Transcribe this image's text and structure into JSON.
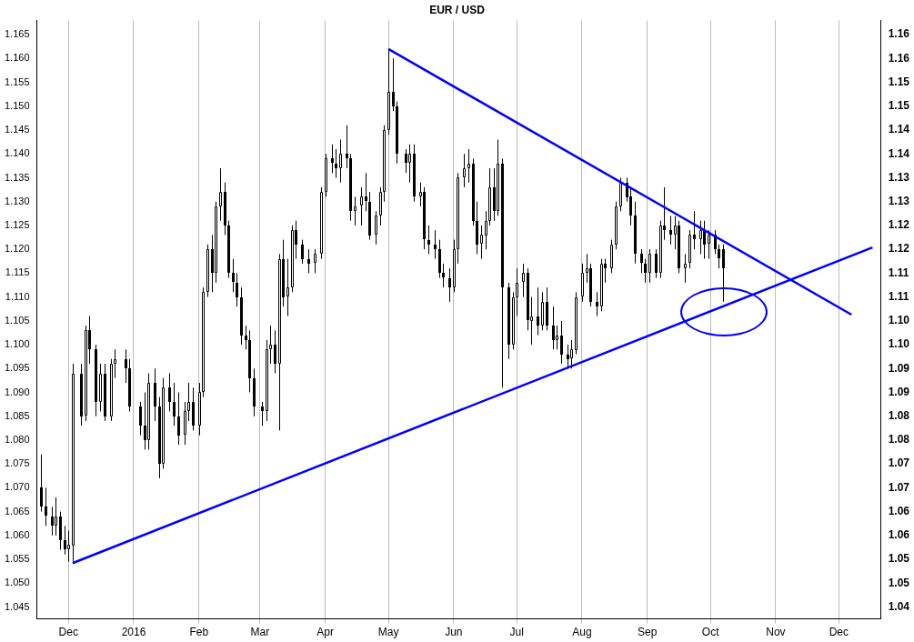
{
  "chart_data": {
    "type": "candlestick",
    "title": "EUR / USD",
    "x": [
      "2015-11-18",
      "2015-11-20",
      "2015-11-23",
      "2015-11-25",
      "2015-11-27",
      "2015-11-29",
      "2015-12-01",
      "2015-12-03",
      "2015-12-07",
      "2015-12-09",
      "2015-12-11",
      "2015-12-14",
      "2015-12-16",
      "2015-12-18",
      "2015-12-21",
      "2015-12-23",
      "2015-12-28",
      "2015-12-30",
      "2016-01-04",
      "2016-01-06",
      "2016-01-08",
      "2016-01-11",
      "2016-01-13",
      "2016-01-15",
      "2016-01-18",
      "2016-01-20",
      "2016-01-22",
      "2016-01-25",
      "2016-01-27",
      "2016-01-29",
      "2016-02-01",
      "2016-02-03",
      "2016-02-05",
      "2016-02-07",
      "2016-02-09",
      "2016-02-11",
      "2016-02-13",
      "2016-02-15",
      "2016-02-17",
      "2016-02-19",
      "2016-02-21",
      "2016-02-23",
      "2016-02-25",
      "2016-02-27",
      "2016-03-02",
      "2016-03-04",
      "2016-03-06",
      "2016-03-08",
      "2016-03-10",
      "2016-03-12",
      "2016-03-14",
      "2016-03-16",
      "2016-03-18",
      "2016-03-21",
      "2016-03-24",
      "2016-03-27",
      "2016-03-30",
      "2016-04-01",
      "2016-04-04",
      "2016-04-06",
      "2016-04-08",
      "2016-04-11",
      "2016-04-13",
      "2016-04-15",
      "2016-04-18",
      "2016-04-20",
      "2016-04-22",
      "2016-04-25",
      "2016-04-27",
      "2016-04-29",
      "2016-05-01",
      "2016-05-03",
      "2016-05-05",
      "2016-05-09",
      "2016-05-11",
      "2016-05-13",
      "2016-05-16",
      "2016-05-18",
      "2016-05-20",
      "2016-05-23",
      "2016-05-25",
      "2016-05-27",
      "2016-05-30",
      "2016-06-01",
      "2016-06-03",
      "2016-06-06",
      "2016-06-08",
      "2016-06-10",
      "2016-06-12",
      "2016-06-14",
      "2016-06-16",
      "2016-06-18",
      "2016-06-20",
      "2016-06-22",
      "2016-06-24",
      "2016-06-27",
      "2016-06-29",
      "2016-07-01",
      "2016-07-04",
      "2016-07-06",
      "2016-07-08",
      "2016-07-11",
      "2016-07-13",
      "2016-07-15",
      "2016-07-18",
      "2016-07-20",
      "2016-07-22",
      "2016-07-25",
      "2016-07-27",
      "2016-07-29",
      "2016-08-01",
      "2016-08-03",
      "2016-08-05",
      "2016-08-08",
      "2016-08-10",
      "2016-08-12",
      "2016-08-15",
      "2016-08-17",
      "2016-08-19",
      "2016-08-22",
      "2016-08-24",
      "2016-08-26",
      "2016-08-29",
      "2016-08-31",
      "2016-09-02",
      "2016-09-05",
      "2016-09-07",
      "2016-09-09",
      "2016-09-12",
      "2016-09-14",
      "2016-09-16",
      "2016-09-19",
      "2016-09-21",
      "2016-09-23",
      "2016-09-26",
      "2016-09-28",
      "2016-09-30",
      "2016-10-03",
      "2016-10-05",
      "2016-10-07"
    ],
    "ohlc": [
      [
        1.07,
        1.077,
        1.065,
        1.066
      ],
      [
        1.066,
        1.07,
        1.062,
        1.064
      ],
      [
        1.064,
        1.066,
        1.06,
        1.062
      ],
      [
        1.062,
        1.068,
        1.06,
        1.064
      ],
      [
        1.064,
        1.065,
        1.057,
        1.059
      ],
      [
        1.059,
        1.062,
        1.056,
        1.057
      ],
      [
        1.057,
        1.061,
        1.0545,
        1.058
      ],
      [
        1.058,
        1.096,
        1.0545,
        1.094
      ],
      [
        1.094,
        1.096,
        1.083,
        1.085
      ],
      [
        1.085,
        1.104,
        1.084,
        1.103
      ],
      [
        1.103,
        1.106,
        1.096,
        1.099
      ],
      [
        1.099,
        1.1,
        1.085,
        1.088
      ],
      [
        1.088,
        1.096,
        1.086,
        1.094
      ],
      [
        1.094,
        1.096,
        1.084,
        1.085
      ],
      [
        1.085,
        1.097,
        1.084,
        1.096
      ],
      [
        1.096,
        1.099,
        1.093,
        1.097
      ],
      [
        1.097,
        1.099,
        1.092,
        1.095
      ],
      [
        1.095,
        1.097,
        1.086,
        1.087
      ],
      [
        1.087,
        1.088,
        1.081,
        1.083
      ],
      [
        1.083,
        1.09,
        1.078,
        1.08
      ],
      [
        1.08,
        1.094,
        1.078,
        1.092
      ],
      [
        1.092,
        1.095,
        1.084,
        1.087
      ],
      [
        1.087,
        1.089,
        1.072,
        1.075
      ],
      [
        1.075,
        1.093,
        1.074,
        1.091
      ],
      [
        1.091,
        1.094,
        1.086,
        1.088
      ],
      [
        1.088,
        1.092,
        1.083,
        1.085
      ],
      [
        1.085,
        1.09,
        1.079,
        1.081
      ],
      [
        1.081,
        1.088,
        1.079,
        1.086
      ],
      [
        1.086,
        1.092,
        1.084,
        1.088
      ],
      [
        1.088,
        1.091,
        1.082,
        1.083
      ],
      [
        1.083,
        1.092,
        1.081,
        1.09
      ],
      [
        1.09,
        1.112,
        1.089,
        1.111
      ],
      [
        1.111,
        1.121,
        1.11,
        1.12
      ],
      [
        1.12,
        1.123,
        1.111,
        1.115
      ],
      [
        1.115,
        1.13,
        1.113,
        1.129
      ],
      [
        1.129,
        1.137,
        1.126,
        1.132
      ],
      [
        1.132,
        1.134,
        1.123,
        1.125
      ],
      [
        1.125,
        1.126,
        1.114,
        1.115
      ],
      [
        1.115,
        1.118,
        1.111,
        1.113
      ],
      [
        1.113,
        1.115,
        1.108,
        1.11
      ],
      [
        1.11,
        1.112,
        1.1,
        1.102
      ],
      [
        1.102,
        1.104,
        1.099,
        1.101
      ],
      [
        1.101,
        1.103,
        1.09,
        1.093
      ],
      [
        1.093,
        1.095,
        1.085,
        1.087
      ],
      [
        1.087,
        1.088,
        1.083,
        1.086
      ],
      [
        1.086,
        1.101,
        1.084,
        1.099
      ],
      [
        1.099,
        1.104,
        1.096,
        1.1
      ],
      [
        1.1,
        1.103,
        1.094,
        1.096
      ],
      [
        1.096,
        1.119,
        1.082,
        1.118
      ],
      [
        1.118,
        1.122,
        1.108,
        1.11
      ],
      [
        1.11,
        1.118,
        1.106,
        1.112
      ],
      [
        1.112,
        1.125,
        1.111,
        1.124
      ],
      [
        1.124,
        1.126,
        1.118,
        1.121
      ],
      [
        1.121,
        1.122,
        1.117,
        1.118
      ],
      [
        1.118,
        1.12,
        1.115,
        1.117
      ],
      [
        1.117,
        1.12,
        1.115,
        1.119
      ],
      [
        1.119,
        1.133,
        1.118,
        1.132
      ],
      [
        1.132,
        1.14,
        1.131,
        1.139
      ],
      [
        1.139,
        1.142,
        1.136,
        1.138
      ],
      [
        1.138,
        1.141,
        1.135,
        1.137
      ],
      [
        1.137,
        1.143,
        1.134,
        1.14
      ],
      [
        1.14,
        1.146,
        1.137,
        1.139
      ],
      [
        1.139,
        1.14,
        1.126,
        1.128
      ],
      [
        1.128,
        1.131,
        1.125,
        1.129
      ],
      [
        1.129,
        1.133,
        1.125,
        1.131
      ],
      [
        1.131,
        1.136,
        1.128,
        1.13
      ],
      [
        1.13,
        1.132,
        1.122,
        1.123
      ],
      [
        1.123,
        1.128,
        1.121,
        1.127
      ],
      [
        1.127,
        1.133,
        1.125,
        1.132
      ],
      [
        1.132,
        1.146,
        1.13,
        1.145
      ],
      [
        1.145,
        1.162,
        1.144,
        1.153
      ],
      [
        1.153,
        1.16,
        1.149,
        1.15
      ],
      [
        1.15,
        1.151,
        1.138,
        1.14
      ],
      [
        1.14,
        1.141,
        1.136,
        1.138
      ],
      [
        1.138,
        1.142,
        1.134,
        1.14
      ],
      [
        1.14,
        1.142,
        1.13,
        1.131
      ],
      [
        1.131,
        1.134,
        1.129,
        1.132
      ],
      [
        1.132,
        1.133,
        1.12,
        1.122
      ],
      [
        1.122,
        1.125,
        1.119,
        1.121
      ],
      [
        1.121,
        1.124,
        1.118,
        1.12
      ],
      [
        1.12,
        1.122,
        1.114,
        1.115
      ],
      [
        1.115,
        1.117,
        1.112,
        1.114
      ],
      [
        1.114,
        1.116,
        1.109,
        1.112
      ],
      [
        1.112,
        1.122,
        1.111,
        1.12
      ],
      [
        1.12,
        1.136,
        1.117,
        1.135
      ],
      [
        1.135,
        1.14,
        1.133,
        1.137
      ],
      [
        1.137,
        1.141,
        1.134,
        1.138
      ],
      [
        1.138,
        1.139,
        1.125,
        1.126
      ],
      [
        1.126,
        1.13,
        1.119,
        1.121
      ],
      [
        1.121,
        1.125,
        1.118,
        1.123
      ],
      [
        1.123,
        1.128,
        1.12,
        1.126
      ],
      [
        1.126,
        1.137,
        1.125,
        1.133
      ],
      [
        1.133,
        1.137,
        1.126,
        1.128
      ],
      [
        1.128,
        1.143,
        1.127,
        1.138
      ],
      [
        1.138,
        1.139,
        1.091,
        1.112
      ],
      [
        1.112,
        1.113,
        1.097,
        1.1
      ],
      [
        1.1,
        1.111,
        1.099,
        1.11
      ],
      [
        1.11,
        1.116,
        1.106,
        1.113
      ],
      [
        1.113,
        1.117,
        1.11,
        1.115
      ],
      [
        1.115,
        1.116,
        1.103,
        1.105
      ],
      [
        1.105,
        1.11,
        1.1,
        1.106
      ],
      [
        1.106,
        1.112,
        1.102,
        1.104
      ],
      [
        1.104,
        1.111,
        1.103,
        1.109
      ],
      [
        1.109,
        1.112,
        1.103,
        1.104
      ],
      [
        1.104,
        1.108,
        1.099,
        1.101
      ],
      [
        1.101,
        1.104,
        1.099,
        1.102
      ],
      [
        1.102,
        1.105,
        1.096,
        1.098
      ],
      [
        1.098,
        1.1,
        1.095,
        1.097
      ],
      [
        1.097,
        1.101,
        1.095,
        1.099
      ],
      [
        1.099,
        1.111,
        1.098,
        1.11
      ],
      [
        1.11,
        1.117,
        1.109,
        1.115
      ],
      [
        1.115,
        1.119,
        1.113,
        1.116
      ],
      [
        1.116,
        1.117,
        1.108,
        1.109
      ],
      [
        1.109,
        1.111,
        1.106,
        1.108
      ],
      [
        1.108,
        1.118,
        1.107,
        1.117
      ],
      [
        1.117,
        1.118,
        1.113,
        1.116
      ],
      [
        1.116,
        1.122,
        1.115,
        1.121
      ],
      [
        1.121,
        1.13,
        1.12,
        1.129
      ],
      [
        1.129,
        1.135,
        1.128,
        1.134
      ],
      [
        1.134,
        1.135,
        1.13,
        1.131
      ],
      [
        1.131,
        1.133,
        1.125,
        1.127
      ],
      [
        1.127,
        1.13,
        1.117,
        1.119
      ],
      [
        1.119,
        1.12,
        1.115,
        1.117
      ],
      [
        1.117,
        1.118,
        1.113,
        1.115
      ],
      [
        1.115,
        1.12,
        1.113,
        1.119
      ],
      [
        1.119,
        1.12,
        1.114,
        1.115
      ],
      [
        1.115,
        1.126,
        1.114,
        1.125
      ],
      [
        1.125,
        1.133,
        1.122,
        1.124
      ],
      [
        1.124,
        1.127,
        1.121,
        1.123
      ],
      [
        1.123,
        1.127,
        1.12,
        1.125
      ],
      [
        1.125,
        1.126,
        1.115,
        1.116
      ],
      [
        1.116,
        1.119,
        1.113,
        1.117
      ],
      [
        1.117,
        1.124,
        1.116,
        1.123
      ],
      [
        1.123,
        1.128,
        1.12,
        1.122
      ],
      [
        1.122,
        1.126,
        1.119,
        1.124
      ],
      [
        1.124,
        1.126,
        1.118,
        1.121
      ],
      [
        1.121,
        1.124,
        1.118,
        1.123
      ],
      [
        1.123,
        1.124,
        1.119,
        1.12
      ],
      [
        1.12,
        1.121,
        1.116,
        1.118
      ],
      [
        1.12,
        1.121,
        1.109,
        1.116
      ]
    ],
    "series": [
      {
        "type": "line",
        "color": "#0000ff",
        "x": [
          "2016-05-01",
          "2016-12-07"
        ],
        "values": [
          1.162,
          1.1063
        ]
      },
      {
        "type": "line",
        "color": "#0000ff",
        "x": [
          "2015-12-03",
          "2016-12-17"
        ],
        "values": [
          1.0542,
          1.1204
        ]
      }
    ],
    "xlim": [
      "2015-11-16",
      "2016-12-21"
    ],
    "xticks": [
      {
        "value": "2015-12-01",
        "label": "Dec"
      },
      {
        "value": "2016-01-01",
        "label": "2016"
      },
      {
        "value": "2016-02-01",
        "label": "Feb"
      },
      {
        "value": "2016-03-01",
        "label": "Mar"
      },
      {
        "value": "2016-04-01",
        "label": "Apr"
      },
      {
        "value": "2016-05-01",
        "label": "May"
      },
      {
        "value": "2016-06-01",
        "label": "Jun"
      },
      {
        "value": "2016-07-01",
        "label": "Jul"
      },
      {
        "value": "2016-08-01",
        "label": "Aug"
      },
      {
        "value": "2016-09-01",
        "label": "Sep"
      },
      {
        "value": "2016-10-01",
        "label": "Oct"
      },
      {
        "value": "2016-11-01",
        "label": "Nov"
      },
      {
        "value": "2016-12-01",
        "label": "Dec"
      }
    ],
    "ylim": [
      1.0425,
      1.168
    ],
    "yticks": [
      1.045,
      {
        "value": 1.05,
        "label": "1.050"
      },
      1.055,
      {
        "value": 1.06,
        "label": "1.060"
      },
      1.065,
      {
        "value": 1.07,
        "label": "1.070"
      },
      1.075,
      {
        "value": 1.08,
        "label": "1.080"
      },
      1.085,
      {
        "value": 1.09,
        "label": "1.090"
      },
      1.095,
      {
        "value": 1.1,
        "label": "1.100"
      },
      1.105,
      {
        "value": 1.11,
        "label": "1.110"
      },
      1.115,
      {
        "value": 1.12,
        "label": "1.120"
      },
      1.125,
      {
        "value": 1.13,
        "label": "1.130"
      },
      1.135,
      {
        "value": 1.14,
        "label": "1.140"
      },
      1.145,
      {
        "value": 1.15,
        "label": "1.150"
      },
      1.155,
      {
        "value": 1.16,
        "label": "1.160"
      },
      1.165
    ],
    "y2lim": [
      1.0425,
      1.168
    ],
    "y2ticks": [
      {
        "value": 1.045,
        "label": "1.04"
      },
      {
        "value": 1.05,
        "label": "1.05"
      },
      {
        "value": 1.055,
        "label": "1.05"
      },
      {
        "value": 1.06,
        "label": "1.06"
      },
      {
        "value": 1.065,
        "label": "1.06"
      },
      {
        "value": 1.07,
        "label": "1.07"
      },
      {
        "value": 1.075,
        "label": "1.07"
      },
      {
        "value": 1.08,
        "label": "1.08"
      },
      {
        "value": 1.085,
        "label": "1.08"
      },
      {
        "value": 1.09,
        "label": "1.09"
      },
      {
        "value": 1.095,
        "label": "1.09"
      },
      {
        "value": 1.1,
        "label": "1.10"
      },
      {
        "value": 1.105,
        "label": "1.10"
      },
      {
        "value": 1.11,
        "label": "1.11"
      },
      {
        "value": 1.115,
        "label": "1.11"
      },
      {
        "value": 1.12,
        "label": "1.12"
      },
      {
        "value": 1.125,
        "label": "1.12"
      },
      {
        "value": 1.13,
        "label": "1.13"
      },
      {
        "value": 1.135,
        "label": "1.13"
      },
      {
        "value": 1.14,
        "label": "1.14"
      },
      {
        "value": 1.145,
        "label": "1.14"
      },
      {
        "value": 1.15,
        "label": "1.15"
      },
      {
        "value": 1.155,
        "label": "1.15"
      },
      {
        "value": 1.16,
        "label": "1.16"
      },
      {
        "value": 1.165,
        "label": "1.16"
      }
    ],
    "grid": "x",
    "legend": false
  }
}
